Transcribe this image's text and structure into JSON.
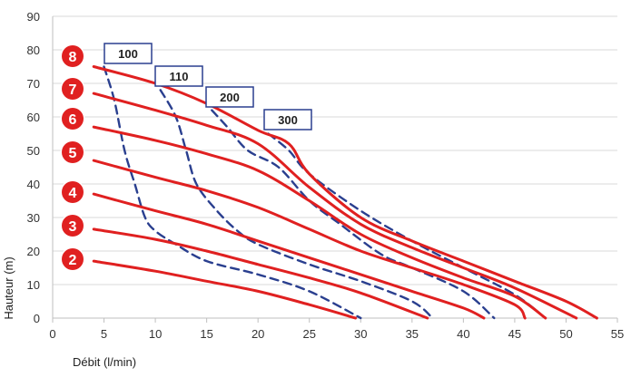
{
  "chart_data": {
    "type": "line",
    "xlabel": "Débit (l/min)",
    "ylabel": "Hauteur (m)",
    "xlim": [
      0,
      55
    ],
    "ylim": [
      0,
      90
    ],
    "xticks": [
      0,
      5,
      10,
      15,
      20,
      25,
      30,
      35,
      40,
      45,
      50,
      55
    ],
    "yticks": [
      0,
      10,
      20,
      30,
      40,
      50,
      60,
      70,
      80,
      90
    ],
    "grid": "horizontal",
    "colors": {
      "stage_curve": "#e02020",
      "speed_curve": "#2a3f8f",
      "grid": "#d9d9d9",
      "badge": "#e02020"
    },
    "stage_curves": [
      {
        "label": "2",
        "points": [
          [
            4,
            17
          ],
          [
            10,
            14
          ],
          [
            15,
            11
          ],
          [
            20,
            8
          ],
          [
            25,
            4
          ],
          [
            29.5,
            0
          ]
        ]
      },
      {
        "label": "3",
        "points": [
          [
            4,
            26.5
          ],
          [
            10,
            23.5
          ],
          [
            15,
            20
          ],
          [
            20,
            16
          ],
          [
            25,
            12
          ],
          [
            30,
            7.5
          ],
          [
            36.5,
            0
          ]
        ]
      },
      {
        "label": "4",
        "points": [
          [
            4,
            37
          ],
          [
            10,
            32
          ],
          [
            15,
            28
          ],
          [
            20,
            23
          ],
          [
            25,
            18
          ],
          [
            30,
            13
          ],
          [
            35,
            8
          ],
          [
            40,
            3
          ],
          [
            42,
            0
          ]
        ]
      },
      {
        "label": "5",
        "points": [
          [
            4,
            47
          ],
          [
            10,
            42
          ],
          [
            15,
            38
          ],
          [
            20,
            33
          ],
          [
            25,
            26.5
          ],
          [
            30,
            20
          ],
          [
            35,
            15
          ],
          [
            40,
            10
          ],
          [
            45,
            4
          ],
          [
            46,
            0
          ]
        ]
      },
      {
        "label": "6",
        "points": [
          [
            4,
            57
          ],
          [
            10,
            53
          ],
          [
            15,
            49
          ],
          [
            20,
            44
          ],
          [
            25,
            35
          ],
          [
            30,
            25
          ],
          [
            35,
            18
          ],
          [
            40,
            12
          ],
          [
            45,
            6.5
          ],
          [
            48,
            0
          ]
        ]
      },
      {
        "label": "7",
        "points": [
          [
            4,
            67
          ],
          [
            10,
            62
          ],
          [
            15,
            57.5
          ],
          [
            20,
            52
          ],
          [
            25,
            39
          ],
          [
            30,
            28
          ],
          [
            35,
            21
          ],
          [
            40,
            15
          ],
          [
            45,
            9
          ],
          [
            51,
            0
          ]
        ]
      },
      {
        "label": "8",
        "points": [
          [
            4,
            75
          ],
          [
            10,
            70
          ],
          [
            15,
            64
          ],
          [
            20,
            56
          ],
          [
            23,
            52
          ],
          [
            25,
            43
          ],
          [
            30,
            30
          ],
          [
            35,
            23
          ],
          [
            40,
            17
          ],
          [
            45,
            11
          ],
          [
            50,
            5
          ],
          [
            53,
            0
          ]
        ]
      }
    ],
    "speed_curves": [
      {
        "label": "100",
        "points": [
          [
            5,
            75
          ],
          [
            6,
            65
          ],
          [
            7,
            50
          ],
          [
            8,
            40
          ],
          [
            9,
            30
          ],
          [
            10,
            26
          ],
          [
            12,
            22
          ],
          [
            15,
            17
          ],
          [
            20,
            13
          ],
          [
            25,
            8
          ],
          [
            30,
            0
          ]
        ]
      },
      {
        "label": "110",
        "points": [
          [
            10.5,
            68
          ],
          [
            12,
            60
          ],
          [
            13,
            50
          ],
          [
            14,
            40
          ],
          [
            16,
            32
          ],
          [
            18,
            26
          ],
          [
            20,
            22
          ],
          [
            25,
            16
          ],
          [
            30,
            11
          ],
          [
            35,
            5
          ],
          [
            37,
            0
          ]
        ]
      },
      {
        "label": "200",
        "points": [
          [
            15.5,
            62
          ],
          [
            17,
            57
          ],
          [
            19,
            50
          ],
          [
            22,
            45
          ],
          [
            25,
            35
          ],
          [
            28,
            28
          ],
          [
            32,
            19
          ],
          [
            35,
            15
          ],
          [
            40,
            8
          ],
          [
            43,
            0
          ]
        ]
      },
      {
        "label": "300",
        "points": [
          [
            21,
            55
          ],
          [
            23,
            50
          ],
          [
            25,
            43
          ],
          [
            30,
            32
          ],
          [
            35,
            23
          ],
          [
            40,
            15
          ],
          [
            45,
            7
          ],
          [
            48,
            0
          ]
        ]
      }
    ],
    "stage_badges": [
      "2",
      "3",
      "4",
      "5",
      "6",
      "7",
      "8"
    ],
    "speed_labels": [
      "100",
      "110",
      "200",
      "300"
    ]
  }
}
